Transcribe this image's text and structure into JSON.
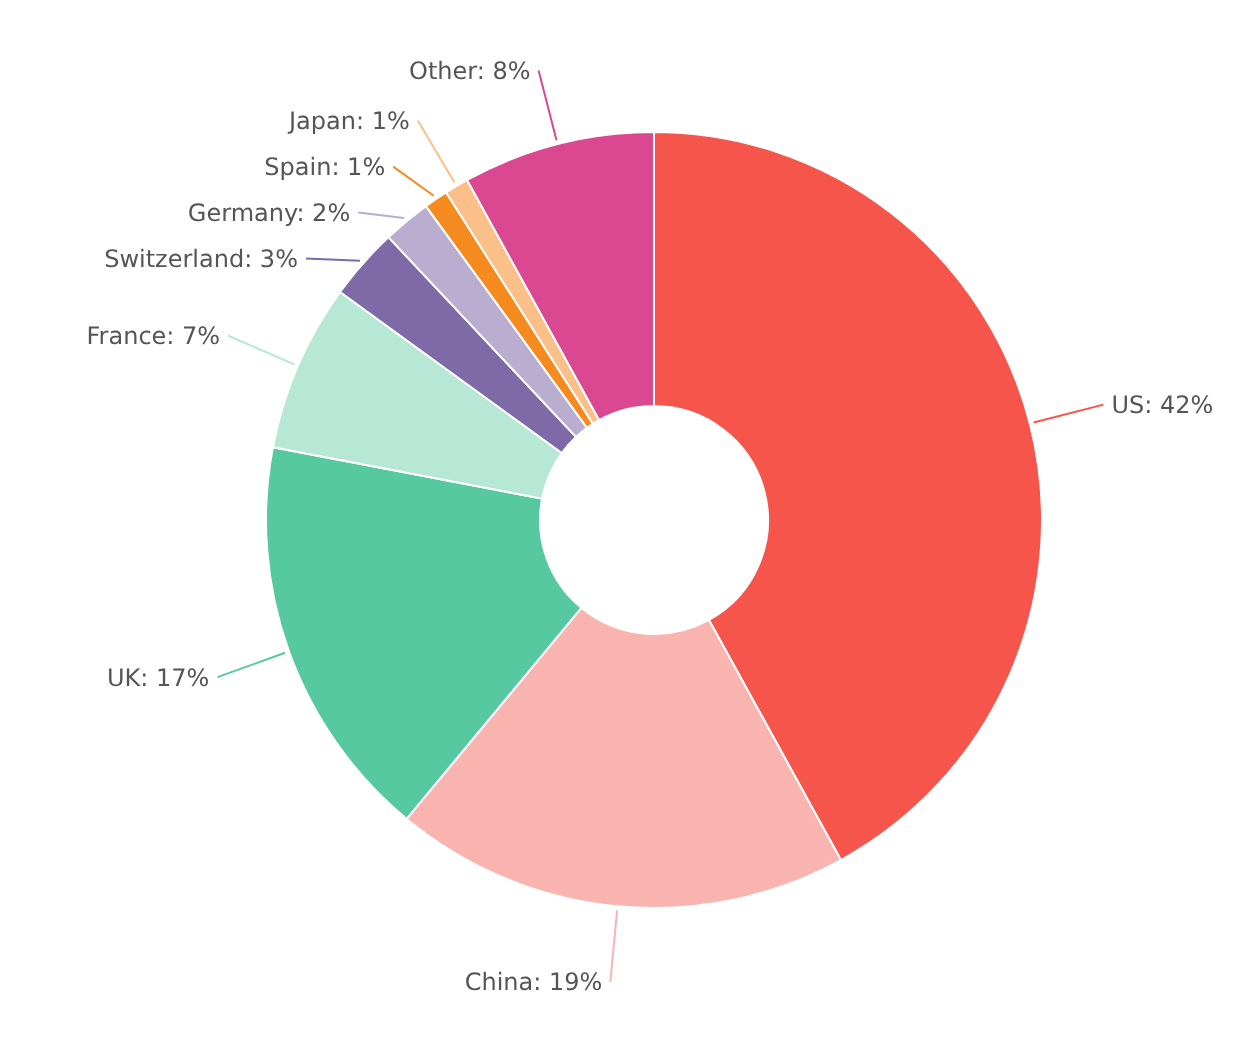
{
  "chart_data": {
    "type": "donut",
    "categories": [
      "US",
      "China",
      "UK",
      "France",
      "Switzerland",
      "Germany",
      "Spain",
      "Japan",
      "Other"
    ],
    "values": [
      42,
      19,
      17,
      7,
      3,
      2,
      1,
      1,
      8
    ],
    "value_labels": [
      "42%",
      "19%",
      "17%",
      "7%",
      "3%",
      "2%",
      "1%",
      "1%",
      "8%"
    ],
    "colors": [
      "#f5554a",
      "#f9b4b0",
      "#57c9a0",
      "#b7e8d6",
      "#7d6aa6",
      "#b9aed0",
      "#f58a1f",
      "#fbbf8a",
      "#d94891"
    ]
  }
}
